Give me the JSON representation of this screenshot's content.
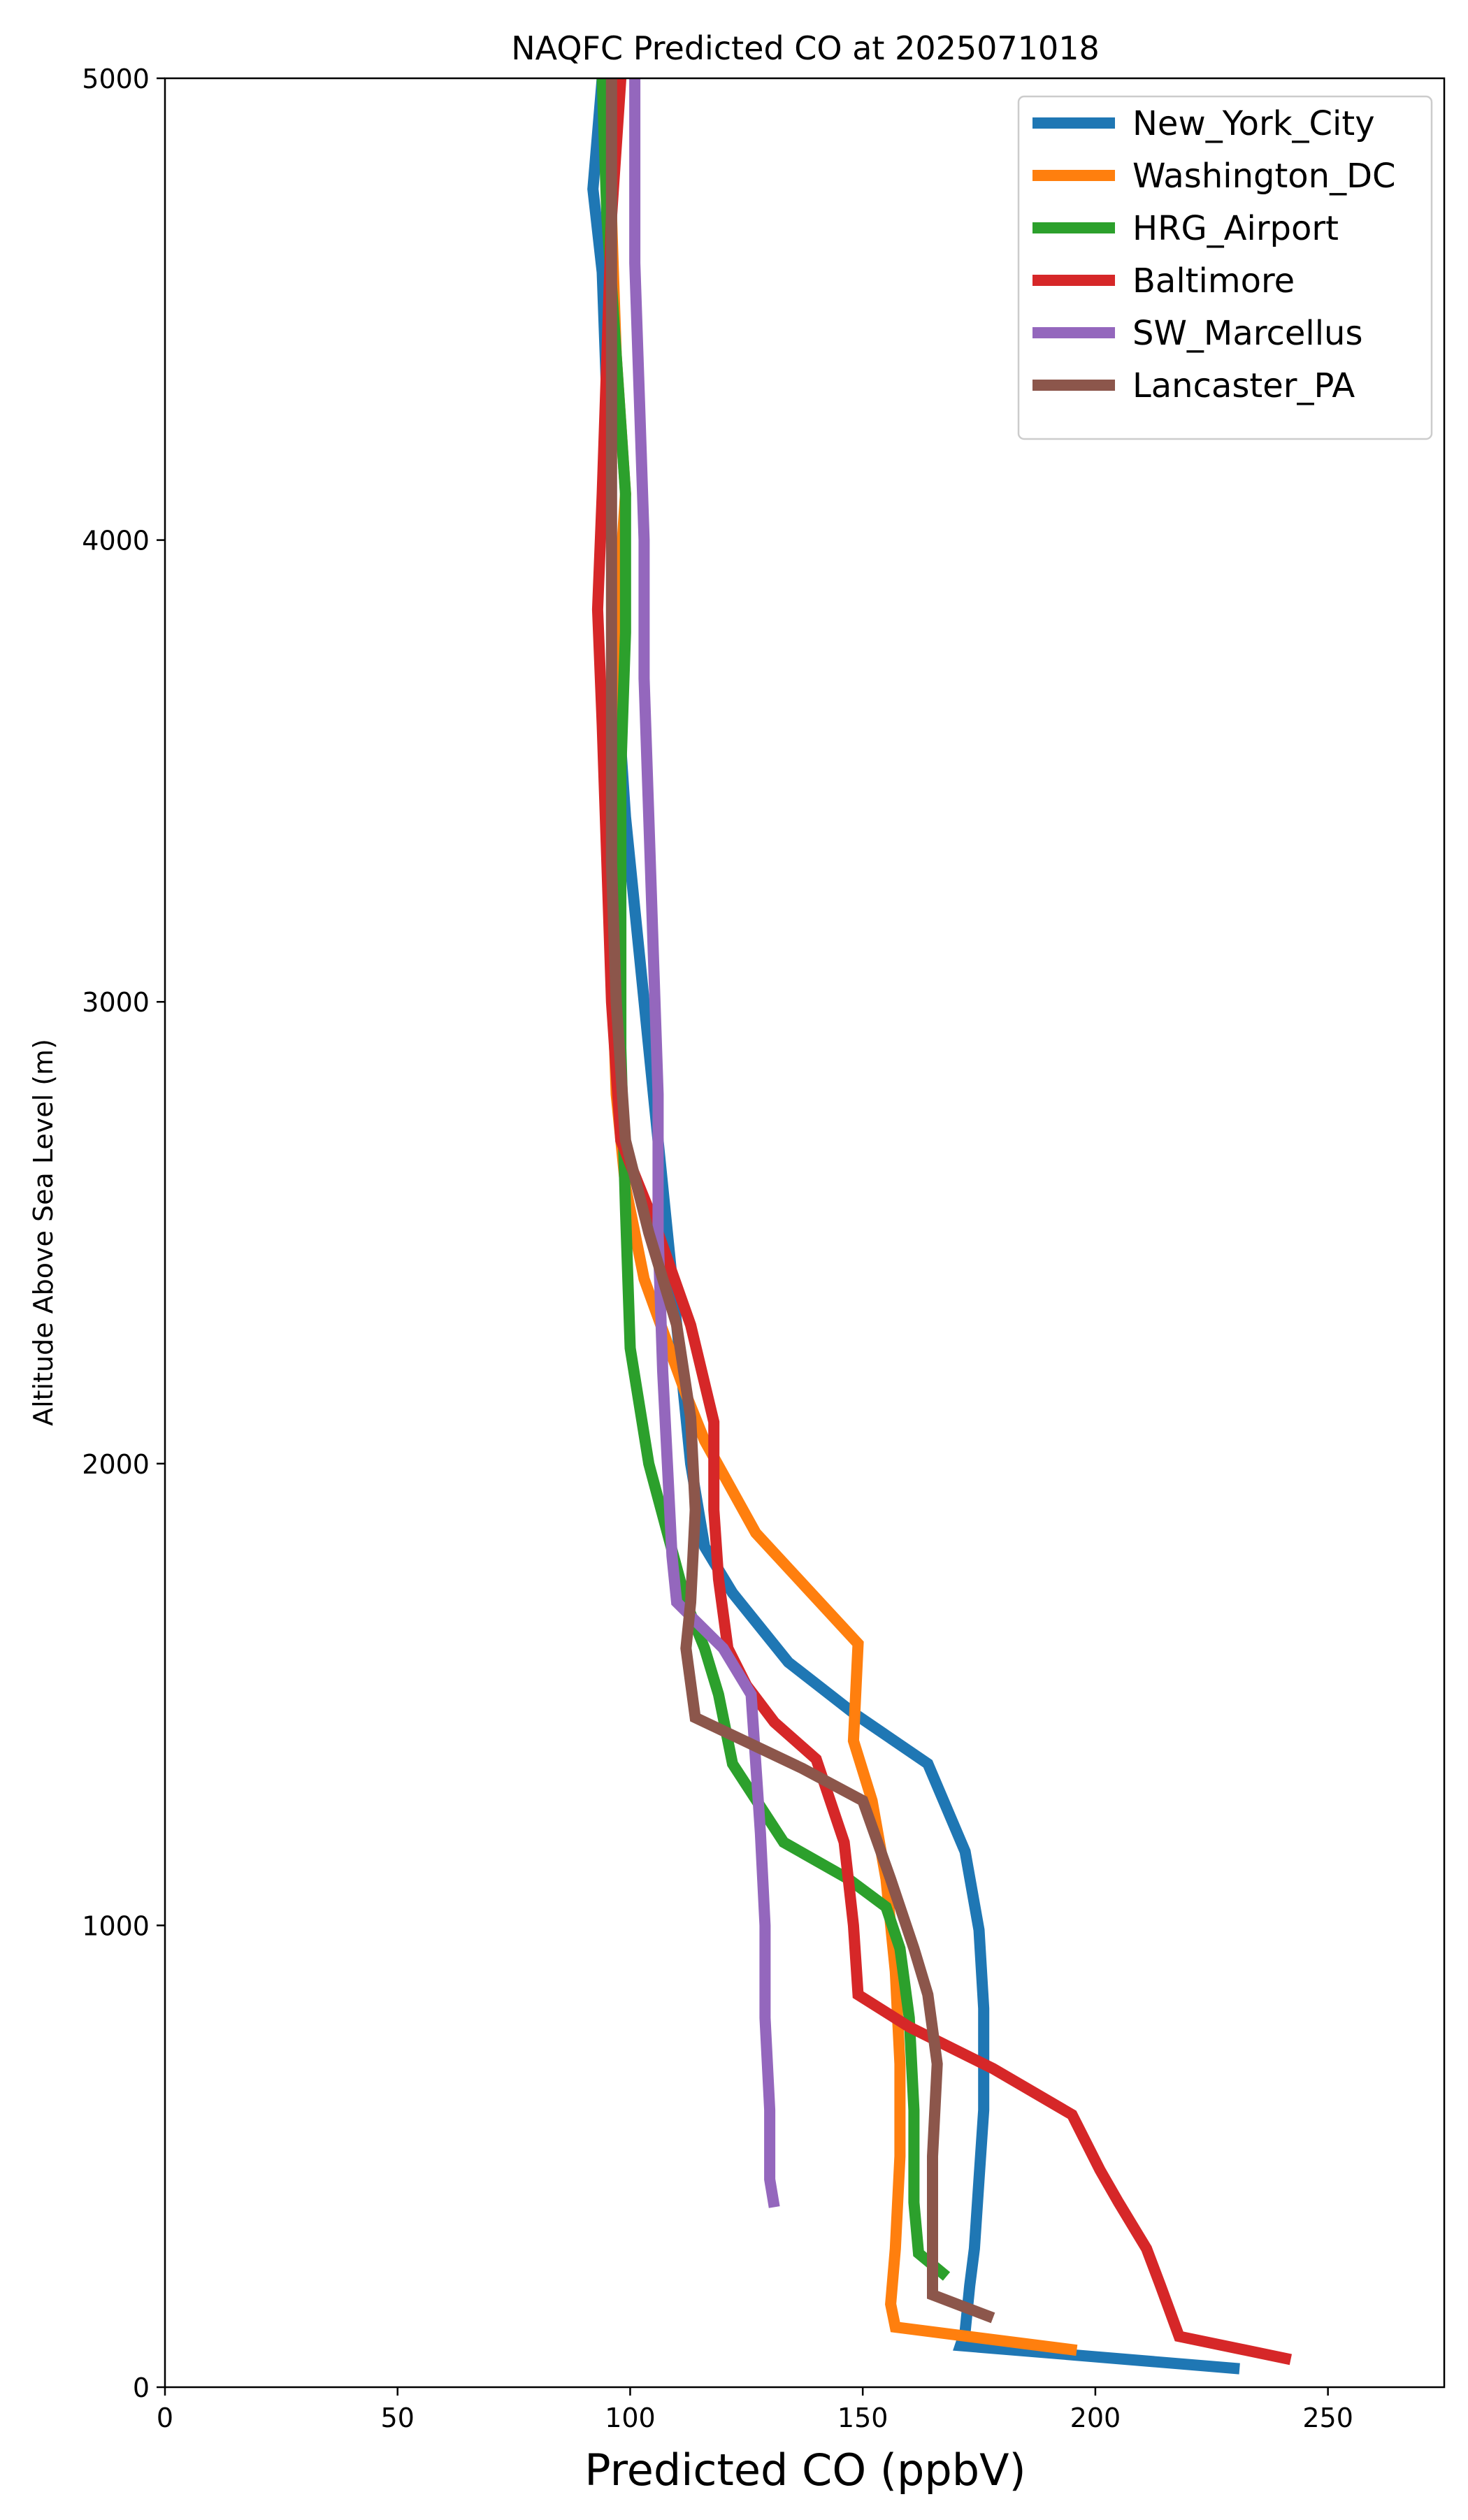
{
  "chart_data": {
    "type": "line",
    "title": "NAQFC Predicted CO at 2025071018",
    "xlabel": "Predicted CO (ppbV)",
    "ylabel": "Altitude Above Sea Level (m)",
    "xlim": [
      0,
      275
    ],
    "ylim": [
      0,
      5000
    ],
    "xticks": [
      "0",
      "50",
      "100",
      "150",
      "200",
      "250"
    ],
    "yticks": [
      "0",
      "1000",
      "2000",
      "3000",
      "4000",
      "5000"
    ],
    "grid": false,
    "legend_position": "top-right",
    "series": [
      {
        "name": "New_York_City",
        "color": "#1f77b4",
        "points": [
          [
            231,
            40
          ],
          [
            171,
            90
          ],
          [
            172,
            120
          ],
          [
            173,
            220
          ],
          [
            174,
            300
          ],
          [
            175,
            450
          ],
          [
            176,
            600
          ],
          [
            176,
            820
          ],
          [
            175,
            990
          ],
          [
            172,
            1160
          ],
          [
            164,
            1350
          ],
          [
            148,
            1460
          ],
          [
            134,
            1570
          ],
          [
            122,
            1720
          ],
          [
            116,
            1820
          ],
          [
            113,
            2000
          ],
          [
            111,
            2200
          ],
          [
            108,
            2500
          ],
          [
            105,
            2800
          ],
          [
            102,
            3100
          ],
          [
            99,
            3400
          ],
          [
            97,
            3700
          ],
          [
            96,
            4000
          ],
          [
            95,
            4300
          ],
          [
            94,
            4580
          ],
          [
            92,
            4760
          ],
          [
            94,
            5000
          ]
        ]
      },
      {
        "name": "Washington_DC",
        "color": "#ff7f0e",
        "points": [
          [
            196,
            80
          ],
          [
            157,
            130
          ],
          [
            156,
            180
          ],
          [
            157,
            300
          ],
          [
            158,
            500
          ],
          [
            158,
            700
          ],
          [
            157,
            900
          ],
          [
            155,
            1100
          ],
          [
            152,
            1270
          ],
          [
            148,
            1400
          ],
          [
            149,
            1610
          ],
          [
            127,
            1850
          ],
          [
            116,
            2050
          ],
          [
            112,
            2150
          ],
          [
            103,
            2400
          ],
          [
            99,
            2600
          ],
          [
            97,
            2800
          ],
          [
            96,
            3100
          ],
          [
            96,
            3500
          ],
          [
            97,
            3800
          ],
          [
            99,
            4100
          ],
          [
            97,
            4400
          ],
          [
            96,
            4700
          ],
          [
            97,
            5000
          ]
        ]
      },
      {
        "name": "HRG_Airport",
        "color": "#2ca02c",
        "points": [
          [
            168,
            240
          ],
          [
            162,
            290
          ],
          [
            161,
            400
          ],
          [
            161,
            600
          ],
          [
            160,
            800
          ],
          [
            158,
            950
          ],
          [
            155,
            1040
          ],
          [
            147,
            1100
          ],
          [
            133,
            1180
          ],
          [
            122,
            1350
          ],
          [
            119,
            1500
          ],
          [
            116,
            1600
          ],
          [
            112,
            1700
          ],
          [
            104,
            2000
          ],
          [
            100,
            2250
          ],
          [
            99,
            2550
          ],
          [
            98,
            2900
          ],
          [
            98,
            3200
          ],
          [
            98,
            3500
          ],
          [
            99,
            3800
          ],
          [
            99,
            4100
          ],
          [
            97,
            4400
          ],
          [
            95,
            4700
          ],
          [
            94,
            5000
          ]
        ]
      },
      {
        "name": "Baltimore",
        "color": "#d62728",
        "points": [
          [
            242,
            60
          ],
          [
            218,
            110
          ],
          [
            214,
            220
          ],
          [
            211,
            300
          ],
          [
            205,
            400
          ],
          [
            201,
            470
          ],
          [
            195,
            590
          ],
          [
            178,
            690
          ],
          [
            160,
            780
          ],
          [
            149,
            850
          ],
          [
            148,
            1000
          ],
          [
            146,
            1180
          ],
          [
            140,
            1360
          ],
          [
            131,
            1440
          ],
          [
            125,
            1520
          ],
          [
            121,
            1600
          ],
          [
            119,
            1750
          ],
          [
            118,
            1900
          ],
          [
            118,
            2090
          ],
          [
            113,
            2300
          ],
          [
            106,
            2500
          ],
          [
            98,
            2700
          ],
          [
            96,
            3000
          ],
          [
            95,
            3300
          ],
          [
            94,
            3600
          ],
          [
            93,
            3850
          ],
          [
            94,
            4100
          ],
          [
            95,
            4400
          ],
          [
            96,
            4700
          ],
          [
            98,
            5000
          ]
        ]
      },
      {
        "name": "SW_Marcellus",
        "color": "#9467bd",
        "points": [
          [
            131,
            390
          ],
          [
            130,
            450
          ],
          [
            130,
            600
          ],
          [
            129,
            800
          ],
          [
            129,
            1000
          ],
          [
            128,
            1200
          ],
          [
            126,
            1500
          ],
          [
            120,
            1600
          ],
          [
            110,
            1700
          ],
          [
            109,
            1800
          ],
          [
            108,
            2000
          ],
          [
            107,
            2200
          ],
          [
            106,
            2500
          ],
          [
            106,
            2800
          ],
          [
            105,
            3100
          ],
          [
            104,
            3400
          ],
          [
            103,
            3700
          ],
          [
            103,
            4000
          ],
          [
            102,
            4300
          ],
          [
            101,
            4600
          ],
          [
            101,
            5000
          ]
        ]
      },
      {
        "name": "Lancaster_PA",
        "color": "#8c564b",
        "points": [
          [
            178,
            150
          ],
          [
            165,
            200
          ],
          [
            165,
            300
          ],
          [
            165,
            500
          ],
          [
            166,
            700
          ],
          [
            164,
            850
          ],
          [
            161,
            950
          ],
          [
            156,
            1100
          ],
          [
            150,
            1270
          ],
          [
            137,
            1340
          ],
          [
            114,
            1450
          ],
          [
            112,
            1600
          ],
          [
            113,
            1700
          ],
          [
            114,
            1900
          ],
          [
            113,
            2100
          ],
          [
            110,
            2300
          ],
          [
            104,
            2500
          ],
          [
            99,
            2700
          ],
          [
            97,
            3000
          ],
          [
            96,
            3300
          ],
          [
            96,
            3600
          ],
          [
            96,
            3900
          ],
          [
            96,
            4200
          ],
          [
            96,
            4500
          ],
          [
            96,
            4800
          ],
          [
            96,
            5000
          ]
        ]
      }
    ]
  }
}
